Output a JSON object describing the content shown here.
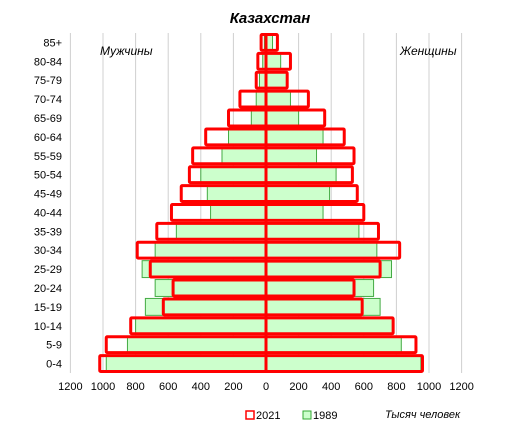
{
  "chart_data": {
    "type": "bar",
    "orientation": "horizontal-pyramid",
    "title": "Казахстан",
    "left_label": "Мужчины",
    "right_label": "Женщины",
    "unit_label": "Тысяч человек",
    "categories": [
      "0-4",
      "5-9",
      "10-14",
      "15-19",
      "20-24",
      "25-29",
      "30-34",
      "35-39",
      "40-44",
      "45-49",
      "50-54",
      "55-59",
      "60-64",
      "65-69",
      "70-74",
      "75-79",
      "80-84",
      "85+"
    ],
    "x_ticks": [
      "1200",
      "1000",
      "800",
      "600",
      "400",
      "200",
      "0",
      "200",
      "400",
      "600",
      "800",
      "1000",
      "1200"
    ],
    "xlim": [
      -1200,
      1200
    ],
    "legend_position": "bottom",
    "series": [
      {
        "name": "2021",
        "color": "#ff0000",
        "men": [
          1020,
          980,
          830,
          630,
          570,
          710,
          790,
          670,
          580,
          520,
          470,
          450,
          370,
          230,
          160,
          60,
          50,
          30
        ],
        "women": [
          960,
          920,
          780,
          590,
          540,
          700,
          820,
          690,
          600,
          560,
          530,
          540,
          480,
          360,
          260,
          130,
          150,
          70
        ]
      },
      {
        "name": "1989",
        "color": "#ccffcc",
        "men": [
          980,
          850,
          800,
          740,
          680,
          760,
          680,
          550,
          340,
          360,
          400,
          270,
          230,
          90,
          60,
          40,
          20,
          10
        ],
        "women": [
          950,
          830,
          780,
          700,
          660,
          770,
          680,
          570,
          350,
          390,
          430,
          310,
          350,
          200,
          150,
          130,
          90,
          40
        ]
      }
    ]
  }
}
